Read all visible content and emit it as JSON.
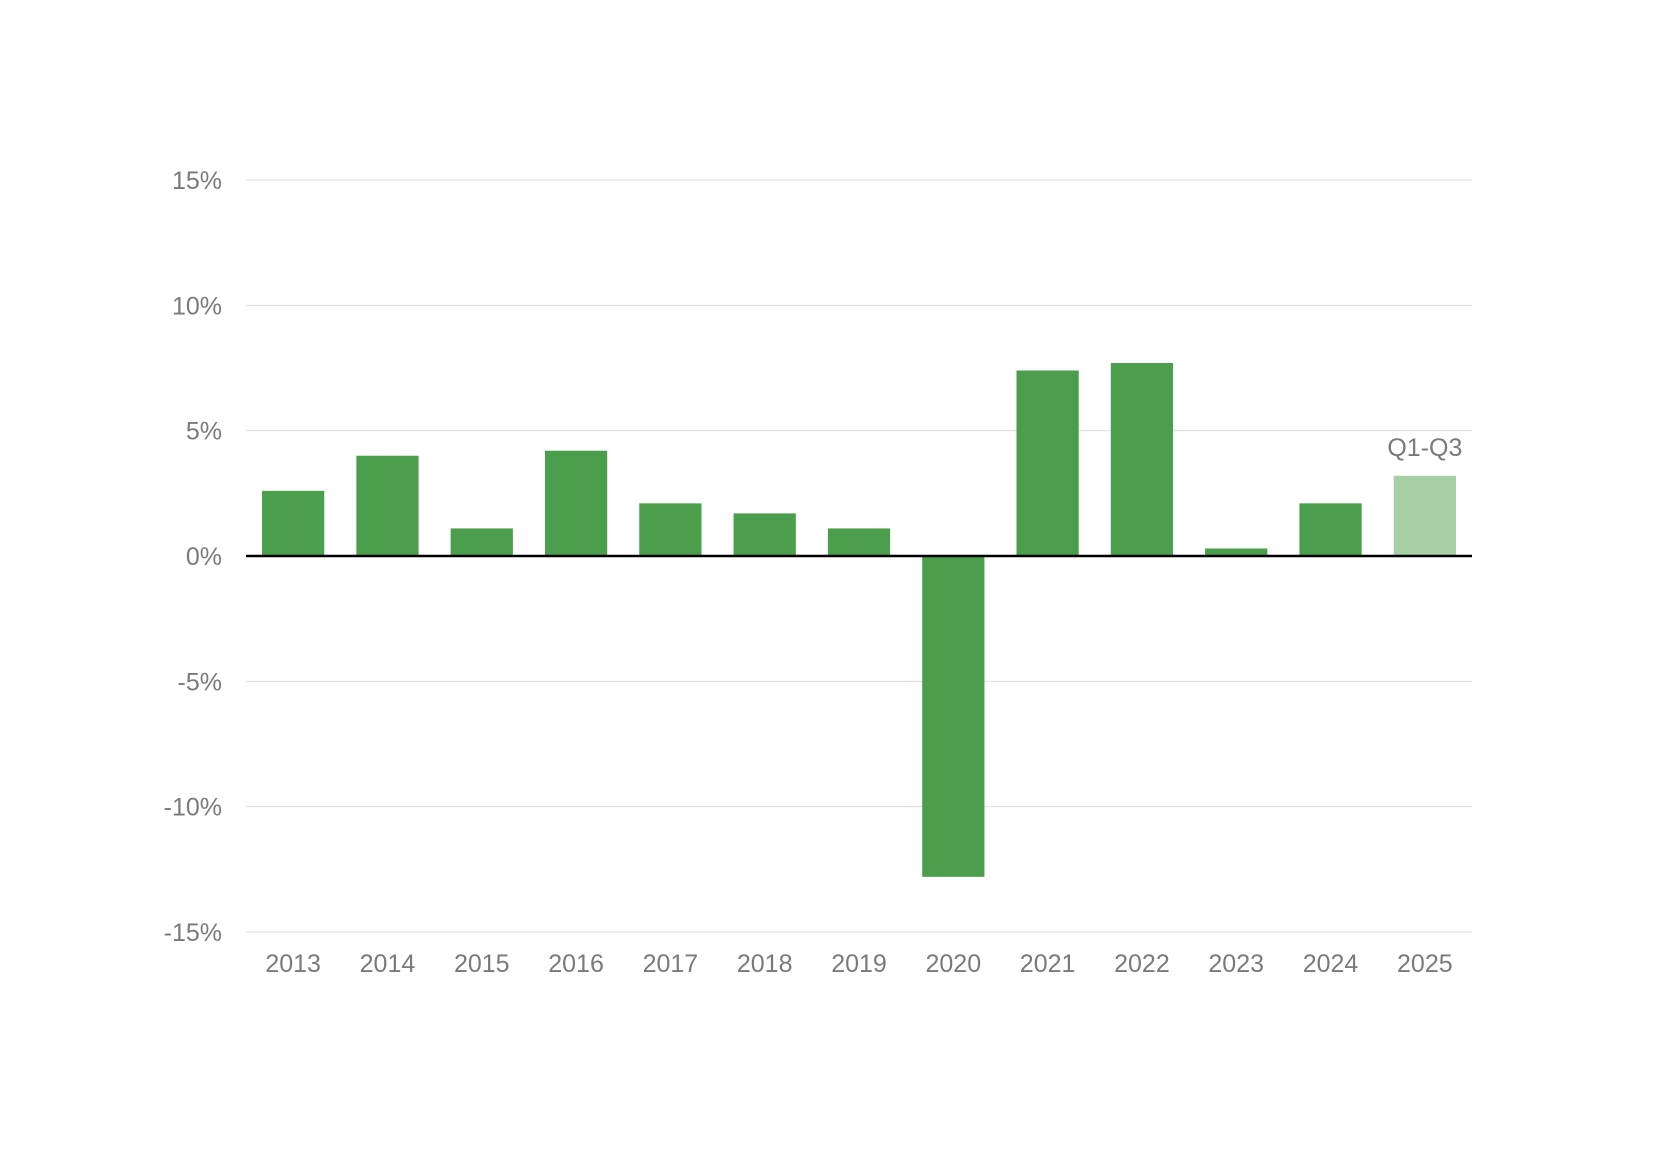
{
  "chart_data": {
    "type": "bar",
    "title": "",
    "xlabel": "",
    "ylabel": "",
    "categories": [
      "2013",
      "2014",
      "2015",
      "2016",
      "2017",
      "2018",
      "2019",
      "2020",
      "2021",
      "2022",
      "2023",
      "2024",
      "2025"
    ],
    "values": [
      2.6,
      4.0,
      1.1,
      4.2,
      2.1,
      1.7,
      1.1,
      -12.8,
      7.4,
      7.7,
      0.3,
      2.1,
      3.2
    ],
    "ylim": [
      -15,
      15
    ],
    "yticks": [
      15,
      10,
      5,
      0,
      -5,
      -10,
      -15
    ],
    "ytick_labels": [
      "15%",
      "10%",
      "5%",
      "0%",
      "-5%",
      "-10%",
      "-15%"
    ],
    "grid": true,
    "legend": "none",
    "bar_color": "#4b9e4b",
    "highlight_bar_color": "#a6cfa6",
    "highlight_category": "2025",
    "annotations": [
      {
        "category": "2025",
        "text": "Q1-Q3"
      }
    ]
  }
}
